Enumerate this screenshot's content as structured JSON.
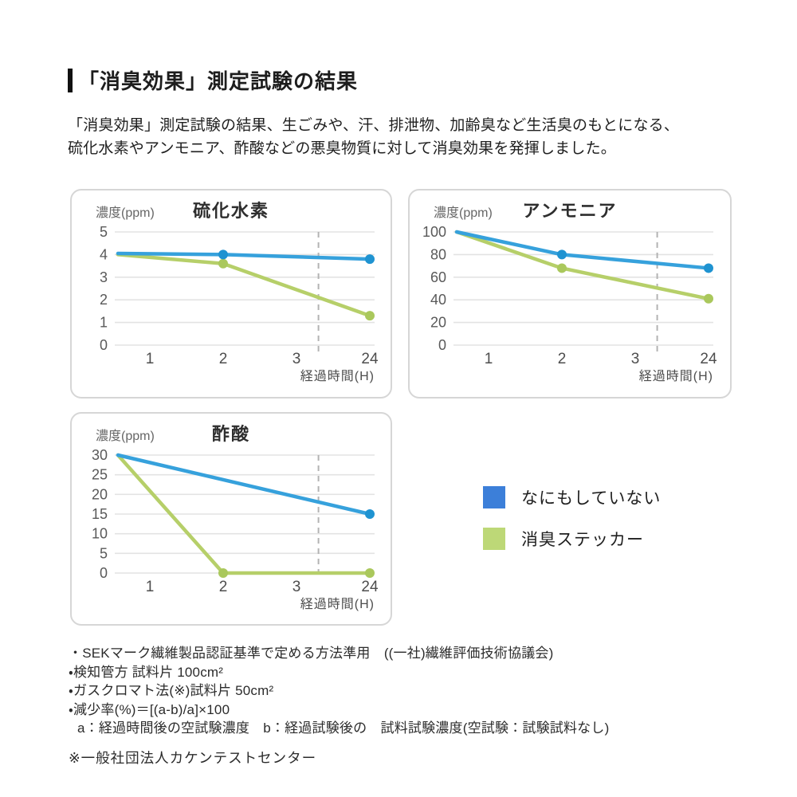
{
  "header": {
    "title": "「消臭効果」測定試験の結果"
  },
  "intro": {
    "line1": "「消臭効果」測定試験の結果、生ごみや、汗、排泄物、加齢臭など生活臭のもとになる、",
    "line2": "硫化水素やアンモニア、酢酸などの悪臭物質に対して消臭効果を発揮しました。"
  },
  "legend": {
    "items": [
      {
        "label": "なにもしていない",
        "color": "#3c7fd9"
      },
      {
        "label": "消臭ステッカー",
        "color": "#bdd877"
      }
    ]
  },
  "chart_data": [
    {
      "type": "line",
      "title": "硫化水素",
      "y_axis_label": "濃度(ppm)",
      "x_axis_label": "経過時間(H)",
      "x_ticks": [
        "1",
        "2",
        "3",
        "24"
      ],
      "y_ticks": [
        5,
        4,
        3,
        2,
        1,
        0
      ],
      "ylim": [
        0,
        5
      ],
      "grid": true,
      "time_break_frac": 0.3,
      "series": [
        {
          "name": "なにもしていない",
          "color": "#36a1dc",
          "dot_color": "#1f93d1",
          "points": [
            {
              "t": "0",
              "v": 4.05
            },
            {
              "t": "2",
              "v": 4
            },
            {
              "t": "24",
              "v": 3.8
            }
          ]
        },
        {
          "name": "消臭ステッカー",
          "color": "#b6cf69",
          "dot_color": "#aac85c",
          "points": [
            {
              "t": "0",
              "v": 4
            },
            {
              "t": "2",
              "v": 3.6
            },
            {
              "t": "24",
              "v": 1.3
            }
          ]
        }
      ]
    },
    {
      "type": "line",
      "title": "アンモニア",
      "y_axis_label": "濃度(ppm)",
      "x_axis_label": "経過時間(H)",
      "x_ticks": [
        "1",
        "2",
        "3",
        "24"
      ],
      "y_ticks": [
        100,
        80,
        60,
        40,
        20,
        0
      ],
      "ylim": [
        0,
        100
      ],
      "grid": true,
      "time_break_frac": 0.3,
      "series": [
        {
          "name": "なにもしていない",
          "color": "#36a1dc",
          "dot_color": "#1f93d1",
          "points": [
            {
              "t": "0",
              "v": 100
            },
            {
              "t": "2",
              "v": 80
            },
            {
              "t": "24",
              "v": 68
            }
          ]
        },
        {
          "name": "消臭ステッカー",
          "color": "#b6cf69",
          "dot_color": "#aac85c",
          "points": [
            {
              "t": "0",
              "v": 100
            },
            {
              "t": "2",
              "v": 68
            },
            {
              "t": "24",
              "v": 41
            }
          ]
        }
      ]
    },
    {
      "type": "line",
      "title": "酢酸",
      "y_axis_label": "濃度(ppm)",
      "x_axis_label": "経過時間(H)",
      "x_ticks": [
        "1",
        "2",
        "3",
        "24"
      ],
      "y_ticks": [
        30,
        25,
        20,
        15,
        10,
        5,
        0
      ],
      "ylim": [
        0,
        30
      ],
      "grid": true,
      "time_break_frac": 0.3,
      "series": [
        {
          "name": "なにもしていない",
          "color": "#36a1dc",
          "dot_color": "#1f93d1",
          "points": [
            {
              "t": "0",
              "v": 30
            },
            {
              "t": "24",
              "v": 15
            }
          ]
        },
        {
          "name": "消臭ステッカー",
          "color": "#b6cf69",
          "dot_color": "#aac85c",
          "points": [
            {
              "t": "0",
              "v": 30
            },
            {
              "t": "2",
              "v": 0
            },
            {
              "t": "24",
              "v": 0
            }
          ]
        }
      ]
    }
  ],
  "footnotes": {
    "items": [
      "・SEKマーク繊維製品認証基準で定める方法準用　((一社)繊維評価技術協議会)",
      "・検知管方 試料片 100cm²",
      "・ガスクロマト法(※)試料片 50cm²",
      "・減少率(%)＝[(a-b)/a]×100",
      "a：経過時間後の空試験濃度　b：経過試験後の　試料試験濃度(空試験：試験試料なし)"
    ],
    "source_note": "※一般社団法人カケンテストセンター"
  }
}
